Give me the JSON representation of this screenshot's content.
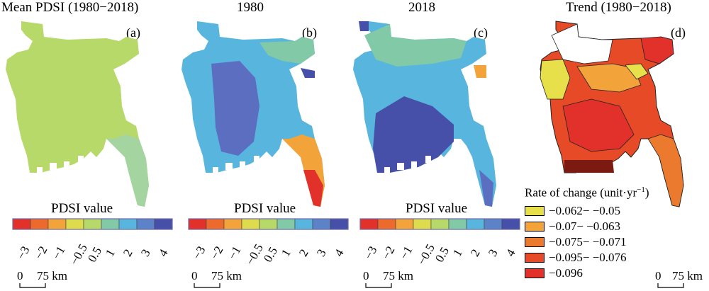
{
  "panels": [
    {
      "title": "Mean PDSI (1980−2018)",
      "label": "(a)"
    },
    {
      "title": "1980",
      "label": "(b)"
    },
    {
      "title": "2018",
      "label": "(c)"
    },
    {
      "title": "Trend (1980−2018)",
      "label": "(d)"
    }
  ],
  "colorbar": {
    "title": "PDSI value",
    "ticks": [
      "−3",
      "−2",
      "−1",
      "−0.5",
      "0.5",
      "1",
      "2",
      "3",
      "4"
    ],
    "colors": [
      "#e2302a",
      "#ec6a2c",
      "#f2a33a",
      "#dedc4c",
      "#b6d96a",
      "#82c9a8",
      "#58b5de",
      "#5c83c8",
      "#4650a8"
    ]
  },
  "scalebar": {
    "start": "0",
    "end": "75 km"
  },
  "trend_legend": {
    "title": "Rate of change (unit·yr",
    "title_sup": "−1",
    "title_close": ")",
    "entries": [
      {
        "label": "−0.062− −0.05",
        "color": "#e8e04a"
      },
      {
        "label": "−0.07− −0.063",
        "color": "#f2a33a"
      },
      {
        "label": "−0.075− −0.071",
        "color": "#ec7a2e"
      },
      {
        "label": "−0.095− −0.076",
        "color": "#e64a26"
      },
      {
        "label": "−0.096",
        "color": "#e2302a"
      }
    ]
  }
}
